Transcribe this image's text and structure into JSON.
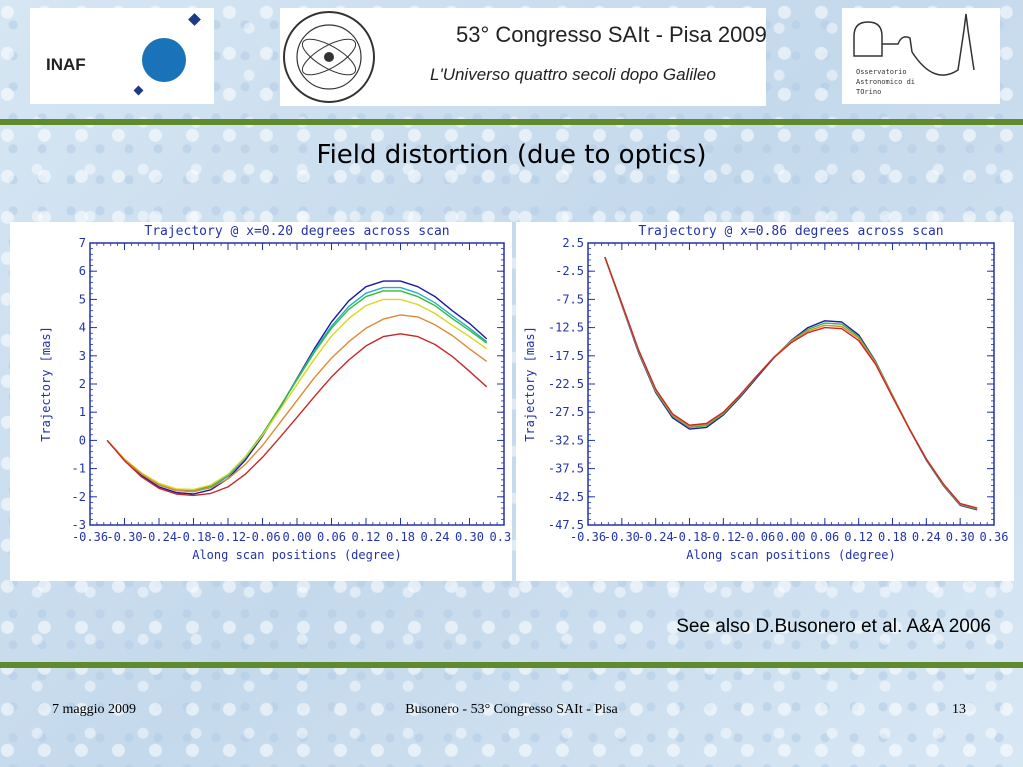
{
  "header": {
    "inaf_logo_text": "INAF",
    "congress_seal_text": "Società Astronomica Italiana · 1871 · Società degli Spettroscopisti",
    "congress_title": "53° Congresso SAIt - Pisa 2009",
    "congress_subtitle": "L'Universo quattro secoli dopo Galileo",
    "observatory_text": [
      "Osservatorio",
      "Astronomico di",
      "TOrino"
    ]
  },
  "slide_title": "Field distortion (due to optics)",
  "reference": "See also D.Busonero  et al. A&A 2006",
  "footer": {
    "date": "7 maggio 2009",
    "center": "Busonero  -  53° Congresso SAIt - Pisa",
    "page": "13"
  },
  "colors": {
    "green_bar": "#5f8a2e",
    "axis_blue": "#2233aa"
  },
  "chart_data": [
    {
      "type": "line",
      "title": "Trajectory @ x=0.20 degrees across scan",
      "xlabel": "Along scan positions (degree)",
      "ylabel": "Trajectory [mas]",
      "xlim": [
        -0.36,
        0.36
      ],
      "ylim": [
        -3,
        7
      ],
      "xticks": [
        "-0.36",
        "-0.30",
        "-0.24",
        "-0.18",
        "-0.12",
        "-0.06",
        "0.00",
        "0.06",
        "0.12",
        "0.18",
        "0.24",
        "0.30",
        "0.36"
      ],
      "yticks": [
        "7",
        "6",
        "5",
        "4",
        "3",
        "2",
        "1",
        "0",
        "-1",
        "-2",
        "-3"
      ],
      "grid": false,
      "x": [
        -0.33,
        -0.3,
        -0.27,
        -0.24,
        -0.21,
        -0.18,
        -0.15,
        -0.12,
        -0.09,
        -0.06,
        -0.03,
        0.0,
        0.03,
        0.06,
        0.09,
        0.12,
        0.15,
        0.18,
        0.21,
        0.24,
        0.27,
        0.3,
        0.33
      ],
      "series": [
        {
          "color": "#1a1aa6",
          "values": [
            0.0,
            -0.7,
            -1.25,
            -1.65,
            -1.85,
            -1.9,
            -1.75,
            -1.35,
            -0.7,
            0.15,
            1.15,
            2.2,
            3.25,
            4.2,
            4.95,
            5.45,
            5.65,
            5.65,
            5.45,
            5.1,
            4.6,
            4.15,
            3.6
          ]
        },
        {
          "color": "#20b0c8",
          "values": [
            0.0,
            -0.68,
            -1.2,
            -1.58,
            -1.78,
            -1.82,
            -1.67,
            -1.27,
            -0.62,
            0.2,
            1.18,
            2.18,
            3.18,
            4.05,
            4.75,
            5.22,
            5.42,
            5.42,
            5.22,
            4.88,
            4.42,
            3.98,
            3.5
          ]
        },
        {
          "color": "#3ab83a",
          "values": [
            0.0,
            -0.67,
            -1.18,
            -1.55,
            -1.75,
            -1.78,
            -1.62,
            -1.22,
            -0.58,
            0.23,
            1.18,
            2.15,
            3.12,
            3.98,
            4.65,
            5.1,
            5.3,
            5.3,
            5.1,
            4.78,
            4.32,
            3.9,
            3.45
          ]
        },
        {
          "color": "#d8d820",
          "values": [
            0.0,
            -0.66,
            -1.16,
            -1.52,
            -1.72,
            -1.74,
            -1.58,
            -1.2,
            -0.58,
            0.18,
            1.08,
            1.98,
            2.88,
            3.7,
            4.32,
            4.78,
            5.0,
            5.0,
            4.82,
            4.5,
            4.08,
            3.68,
            3.25
          ]
        },
        {
          "color": "#e08a30",
          "values": [
            0.0,
            -0.68,
            -1.2,
            -1.58,
            -1.78,
            -1.8,
            -1.68,
            -1.36,
            -0.85,
            -0.18,
            0.62,
            1.42,
            2.22,
            2.92,
            3.5,
            3.98,
            4.3,
            4.45,
            4.38,
            4.1,
            3.72,
            3.25,
            2.8
          ]
        },
        {
          "color": "#c82828",
          "values": [
            0.0,
            -0.72,
            -1.3,
            -1.7,
            -1.9,
            -1.95,
            -1.88,
            -1.65,
            -1.2,
            -0.6,
            0.1,
            0.82,
            1.55,
            2.25,
            2.85,
            3.35,
            3.68,
            3.78,
            3.68,
            3.4,
            2.98,
            2.45,
            1.9
          ]
        }
      ]
    },
    {
      "type": "line",
      "title": "Trajectory @ x=0.86 degrees across scan",
      "xlabel": "Along scan positions (degree)",
      "ylabel": "Trajectory [mas]",
      "xlim": [
        -0.36,
        0.36
      ],
      "ylim": [
        -47.5,
        2.5
      ],
      "xticks": [
        "-0.36",
        "-0.30",
        "-0.24",
        "-0.18",
        "-0.12",
        "-0.06",
        "0.00",
        "0.06",
        "0.12",
        "0.18",
        "0.24",
        "0.30",
        "0.36"
      ],
      "yticks": [
        "2.5",
        "-2.5",
        "-7.5",
        "-12.5",
        "-17.5",
        "-22.5",
        "-27.5",
        "-32.5",
        "-37.5",
        "-42.5",
        "-47.5"
      ],
      "grid": false,
      "x": [
        -0.33,
        -0.3,
        -0.27,
        -0.24,
        -0.21,
        -0.18,
        -0.15,
        -0.12,
        -0.09,
        -0.06,
        -0.03,
        0.0,
        0.03,
        0.06,
        0.09,
        0.12,
        0.15,
        0.18,
        0.21,
        0.24,
        0.27,
        0.3,
        0.33
      ],
      "series": [
        {
          "color": "#1a1aa6",
          "values": [
            0.0,
            -8.5,
            -17.0,
            -24.0,
            -28.5,
            -30.5,
            -30.2,
            -28.0,
            -24.8,
            -21.3,
            -17.8,
            -14.8,
            -12.5,
            -11.3,
            -11.5,
            -13.8,
            -18.5,
            -24.5,
            -30.5,
            -36.0,
            -40.5,
            -44.0,
            -44.8
          ]
        },
        {
          "color": "#3ab83a",
          "values": [
            0.0,
            -8.4,
            -16.8,
            -23.8,
            -28.2,
            -30.2,
            -29.9,
            -27.8,
            -24.6,
            -21.1,
            -17.7,
            -14.9,
            -12.8,
            -11.7,
            -11.9,
            -14.1,
            -18.6,
            -24.5,
            -30.4,
            -35.9,
            -40.4,
            -43.9,
            -44.7
          ]
        },
        {
          "color": "#e08a30",
          "values": [
            0.0,
            -8.3,
            -16.7,
            -23.6,
            -28.0,
            -30.0,
            -29.7,
            -27.6,
            -24.5,
            -21.0,
            -17.7,
            -15.0,
            -13.1,
            -12.1,
            -12.3,
            -14.4,
            -18.8,
            -24.6,
            -30.4,
            -35.8,
            -40.3,
            -43.8,
            -44.6
          ]
        },
        {
          "color": "#c82828",
          "values": [
            0.0,
            -8.2,
            -16.5,
            -23.4,
            -27.8,
            -29.8,
            -29.5,
            -27.5,
            -24.4,
            -21.0,
            -17.8,
            -15.2,
            -13.4,
            -12.5,
            -12.7,
            -14.8,
            -19.0,
            -24.8,
            -30.5,
            -35.8,
            -40.2,
            -43.7,
            -44.5
          ]
        }
      ]
    }
  ]
}
